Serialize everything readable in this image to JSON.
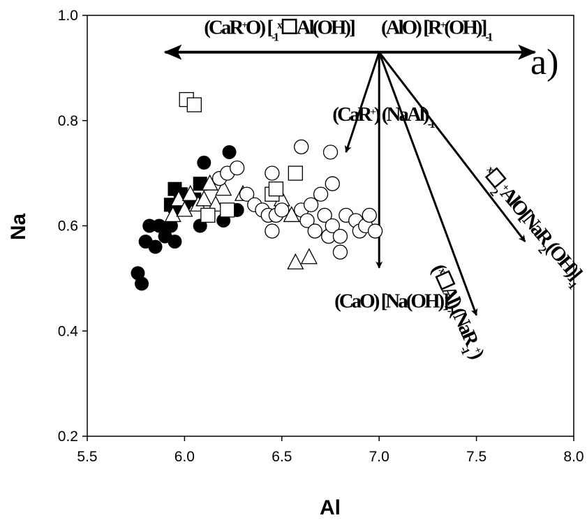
{
  "chart_data": {
    "type": "scatter",
    "xlabel": "Al",
    "ylabel": "Na",
    "xlim": [
      5.5,
      8.0
    ],
    "ylim": [
      0.2,
      1.0
    ],
    "x_ticks": [
      "5.5",
      "6.0",
      "6.5",
      "7.0",
      "7.5",
      "8.0"
    ],
    "y_ticks": [
      "0.2",
      "0.4",
      "0.6",
      "0.8",
      "1.0"
    ],
    "panel_label": "a)",
    "series": [
      {
        "marker": "filled-circle",
        "points": [
          [
            5.76,
            0.51
          ],
          [
            5.78,
            0.49
          ],
          [
            5.8,
            0.57
          ],
          [
            5.82,
            0.6
          ],
          [
            5.85,
            0.56
          ],
          [
            5.87,
            0.6
          ],
          [
            5.9,
            0.58
          ],
          [
            5.93,
            0.6
          ],
          [
            5.95,
            0.57
          ],
          [
            5.95,
            0.63
          ],
          [
            6.0,
            0.64
          ],
          [
            6.08,
            0.6
          ],
          [
            6.1,
            0.72
          ],
          [
            6.2,
            0.61
          ],
          [
            6.23,
            0.74
          ],
          [
            6.27,
            0.63
          ],
          [
            6.22,
            0.7
          ]
        ]
      },
      {
        "marker": "filled-square",
        "points": [
          [
            5.93,
            0.64
          ],
          [
            5.95,
            0.67
          ],
          [
            5.98,
            0.66
          ],
          [
            6.08,
            0.68
          ],
          [
            6.05,
            0.65
          ]
        ]
      },
      {
        "marker": "open-triangle",
        "points": [
          [
            5.94,
            0.62
          ],
          [
            5.97,
            0.65
          ],
          [
            6.0,
            0.63
          ],
          [
            6.03,
            0.66
          ],
          [
            6.07,
            0.64
          ],
          [
            6.1,
            0.65
          ],
          [
            6.13,
            0.68
          ],
          [
            6.16,
            0.64
          ],
          [
            6.2,
            0.67
          ],
          [
            6.3,
            0.66
          ],
          [
            6.5,
            0.65
          ],
          [
            6.55,
            0.62
          ],
          [
            6.57,
            0.53
          ],
          [
            6.64,
            0.54
          ]
        ]
      },
      {
        "marker": "open-square",
        "points": [
          [
            6.01,
            0.84
          ],
          [
            6.05,
            0.83
          ],
          [
            6.12,
            0.62
          ],
          [
            6.22,
            0.63
          ],
          [
            6.45,
            0.66
          ],
          [
            6.47,
            0.67
          ],
          [
            6.57,
            0.7
          ]
        ]
      },
      {
        "marker": "open-circle",
        "points": [
          [
            6.18,
            0.69
          ],
          [
            6.22,
            0.7
          ],
          [
            6.27,
            0.71
          ],
          [
            6.32,
            0.66
          ],
          [
            6.36,
            0.64
          ],
          [
            6.4,
            0.63
          ],
          [
            6.43,
            0.62
          ],
          [
            6.45,
            0.59
          ],
          [
            6.47,
            0.62
          ],
          [
            6.5,
            0.63
          ],
          [
            6.45,
            0.7
          ],
          [
            6.6,
            0.75
          ],
          [
            6.6,
            0.63
          ],
          [
            6.63,
            0.61
          ],
          [
            6.65,
            0.64
          ],
          [
            6.67,
            0.59
          ],
          [
            6.7,
            0.66
          ],
          [
            6.72,
            0.62
          ],
          [
            6.74,
            0.58
          ],
          [
            6.76,
            0.68
          ],
          [
            6.76,
            0.6
          ],
          [
            6.8,
            0.55
          ],
          [
            6.8,
            0.58
          ],
          [
            6.83,
            0.62
          ],
          [
            6.88,
            0.61
          ],
          [
            6.9,
            0.59
          ],
          [
            6.93,
            0.6
          ],
          [
            6.95,
            0.62
          ],
          [
            6.98,
            0.59
          ],
          [
            6.75,
            0.74
          ]
        ]
      }
    ],
    "vectors": {
      "origin": [
        7.0,
        0.93
      ],
      "arrows": [
        {
          "to": [
            5.9,
            0.93
          ]
        },
        {
          "to": [
            7.8,
            0.93
          ]
        },
        {
          "to": [
            6.83,
            0.74
          ]
        },
        {
          "to": [
            7.0,
            0.52
          ]
        },
        {
          "to": [
            7.5,
            0.43
          ]
        },
        {
          "to": [
            7.75,
            0.57
          ]
        }
      ],
      "labels": [
        {
          "id": "L1",
          "base": "(CaR",
          "sup": "+",
          "mid": "O) [",
          "sup2": "x",
          "mid2": "☐Al(OH)]",
          "sub": "-1",
          "pos": [
            6.1,
            0.965
          ],
          "angle": 0
        },
        {
          "id": "L2",
          "base": "(AlO) [R",
          "sup": "+",
          "mid": "(OH)]",
          "sub": "-1",
          "pos": [
            7.01,
            0.965
          ],
          "angle": 0
        },
        {
          "id": "L3",
          "base": "(CaR",
          "sup": "+",
          "mid": ") (NaAl)",
          "sub": "-1",
          "pos": [
            6.76,
            0.8
          ],
          "angle": 0
        },
        {
          "id": "L4",
          "base": "(CaO) [Na(OH)]",
          "sub": "-1",
          "pos": [
            6.77,
            0.445
          ],
          "angle": 0
        },
        {
          "id": "L5",
          "base": "(",
          "sup": "x",
          "mid": "☐Al) (NaR",
          "sup2": "+",
          "mid2": ")",
          "sub": "-1",
          "pos": [
            7.27,
            0.52
          ],
          "angle": 66
        },
        {
          "id": "L6",
          "base": "",
          "sup": "x",
          "mid": "☐",
          "sub": "2",
          "mid2": "AlO[NaR",
          "sup2": "+",
          "mid3": "",
          "sub2": "2",
          "mid4": "(OH)]",
          "sub3": "-1",
          "pos": [
            7.53,
            0.7
          ],
          "angle": 50
        }
      ]
    }
  }
}
